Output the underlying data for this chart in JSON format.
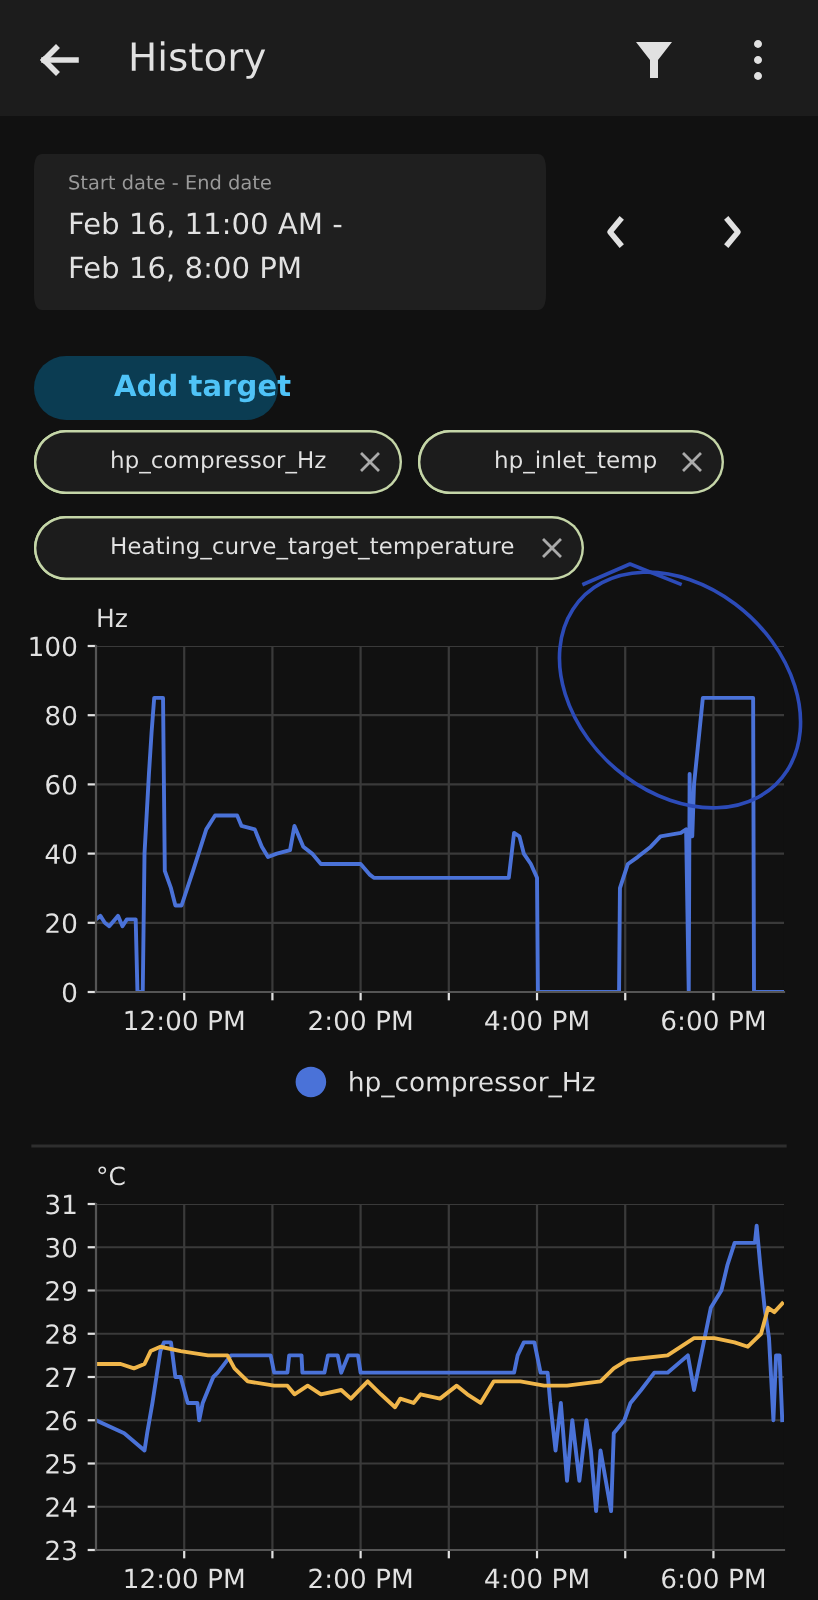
{
  "chart_data": [
    {
      "type": "other",
      "title": "History",
      "annotations": [
        "Start date - End date",
        "Feb 16, 11:00 AM -",
        "Feb 16, 8:00 PM",
        "Add target",
        "hp_compressor_Hz",
        "hp_inlet_temp",
        "Heating_curve_target_temperature"
      ]
    },
    {
      "type": "line",
      "ylabel": "Hz",
      "xlim": [
        11,
        18.8
      ],
      "ylim": [
        0,
        100
      ],
      "yticks": [
        0,
        20,
        40,
        60,
        80,
        100
      ],
      "xticks": [
        {
          "value": 12,
          "label": "12:00 PM"
        },
        {
          "value": 13,
          "label": null
        },
        {
          "value": 14,
          "label": "2:00 PM"
        },
        {
          "value": 15,
          "label": null
        },
        {
          "value": 16,
          "label": "4:00 PM"
        },
        {
          "value": 17,
          "label": null
        },
        {
          "value": 18,
          "label": "6:00 PM"
        }
      ],
      "grid": true,
      "legend": "bottom",
      "marker": "none",
      "line_style": "solid",
      "series": [
        {
          "name": "hp_compressor_Hz",
          "color": "#4a72d8",
          "x": [
            11.0,
            11.05,
            11.1,
            11.15,
            11.25,
            11.3,
            11.35,
            11.45,
            11.47,
            11.53,
            11.55,
            11.6,
            11.63,
            11.66,
            11.76,
            11.78,
            11.85,
            11.9,
            11.97,
            12.1,
            12.25,
            12.35,
            12.6,
            12.65,
            12.8,
            12.88,
            12.95,
            13.05,
            13.2,
            13.25,
            13.35,
            13.45,
            13.55,
            14.0,
            14.1,
            14.15,
            15.68,
            15.74,
            15.8,
            15.85,
            15.93,
            16.0,
            16.01,
            16.93,
            16.94,
            17.03,
            17.14,
            17.29,
            17.4,
            17.63,
            17.69,
            17.72,
            17.73,
            17.74,
            17.76,
            17.78,
            17.84,
            17.88,
            18.45,
            18.46,
            18.8
          ],
          "values": [
            21,
            22,
            20,
            19,
            22,
            19,
            21,
            21,
            0,
            0,
            40,
            63,
            75,
            85,
            85,
            35,
            30,
            25,
            25,
            35,
            47,
            51,
            51,
            48,
            47,
            42,
            39,
            40,
            41,
            48,
            42,
            40,
            37,
            37,
            34,
            33,
            33,
            46,
            45,
            40,
            37,
            33,
            0,
            0,
            30,
            37,
            39,
            42,
            45,
            46,
            47,
            0,
            63,
            45,
            45,
            60,
            75,
            85,
            85,
            0,
            0
          ]
        }
      ]
    },
    {
      "type": "line",
      "ylabel": "°C",
      "xlim": [
        11,
        18.8
      ],
      "ylim": [
        23,
        31
      ],
      "yticks": [
        23,
        24,
        25,
        26,
        27,
        28,
        29,
        30,
        31
      ],
      "xticks": [
        {
          "value": 12,
          "label": "12:00 PM"
        },
        {
          "value": 13,
          "label": null
        },
        {
          "value": 14,
          "label": "2:00 PM"
        },
        {
          "value": 15,
          "label": null
        },
        {
          "value": 16,
          "label": "4:00 PM"
        },
        {
          "value": 17,
          "label": null
        },
        {
          "value": 18,
          "label": "6:00 PM"
        }
      ],
      "grid": true,
      "marker": "none",
      "line_style": "solid",
      "series": [
        {
          "color": "#4a72d8",
          "x": [
            11.0,
            11.32,
            11.55,
            11.58,
            11.64,
            11.73,
            11.77,
            11.85,
            11.9,
            11.96,
            12.04,
            12.15,
            12.17,
            12.21,
            12.27,
            12.33,
            12.38,
            12.53,
            12.98,
            13.02,
            13.17,
            13.19,
            13.33,
            13.34,
            13.59,
            13.63,
            13.74,
            13.78,
            13.86,
            13.97,
            14.0,
            15.74,
            15.78,
            15.85,
            15.97,
            16.04,
            16.12,
            16.15,
            16.21,
            16.27,
            16.34,
            16.4,
            16.48,
            16.56,
            16.61,
            16.67,
            16.72,
            16.84,
            16.87,
            16.99,
            17.06,
            17.18,
            17.33,
            17.48,
            17.71,
            17.78,
            17.82,
            17.9,
            17.97,
            18.09,
            18.16,
            18.24,
            18.47,
            18.49,
            18.53,
            18.58,
            18.63,
            18.68,
            18.71,
            18.75,
            18.78
          ],
          "values": [
            26.0,
            25.7,
            25.3,
            25.7,
            26.4,
            27.6,
            27.8,
            27.8,
            27.0,
            27.0,
            26.4,
            26.4,
            26.0,
            26.4,
            26.7,
            27.0,
            27.1,
            27.5,
            27.5,
            27.1,
            27.1,
            27.5,
            27.5,
            27.1,
            27.1,
            27.5,
            27.5,
            27.1,
            27.5,
            27.5,
            27.1,
            27.1,
            27.5,
            27.8,
            27.8,
            27.1,
            27.1,
            26.4,
            25.3,
            26.4,
            24.6,
            26.0,
            24.6,
            26.0,
            25.3,
            23.9,
            25.3,
            23.9,
            25.7,
            26.0,
            26.4,
            26.7,
            27.1,
            27.1,
            27.5,
            26.7,
            27.1,
            27.9,
            28.6,
            29.0,
            29.6,
            30.1,
            30.1,
            30.5,
            29.6,
            28.6,
            27.9,
            26.0,
            27.5,
            27.5,
            26.0
          ]
        },
        {
          "color": "#f0b64a",
          "x": [
            11.0,
            11.28,
            11.43,
            11.55,
            11.62,
            11.73,
            11.96,
            12.27,
            12.49,
            12.57,
            12.72,
            13.02,
            13.17,
            13.25,
            13.4,
            13.55,
            13.78,
            13.89,
            14.08,
            14.23,
            14.39,
            14.45,
            14.6,
            14.68,
            14.9,
            15.09,
            15.21,
            15.36,
            15.51,
            15.81,
            16.08,
            16.34,
            16.72,
            16.87,
            17.03,
            17.48,
            17.78,
            18.01,
            18.24,
            18.39,
            18.54,
            18.62,
            18.69,
            18.78
          ],
          "values": [
            27.3,
            27.3,
            27.2,
            27.3,
            27.6,
            27.7,
            27.6,
            27.5,
            27.5,
            27.2,
            26.9,
            26.8,
            26.8,
            26.6,
            26.8,
            26.6,
            26.7,
            26.5,
            26.9,
            26.6,
            26.3,
            26.5,
            26.4,
            26.6,
            26.5,
            26.8,
            26.6,
            26.4,
            26.9,
            26.9,
            26.8,
            26.8,
            26.9,
            27.2,
            27.4,
            27.5,
            27.9,
            27.9,
            27.8,
            27.7,
            28.0,
            28.6,
            28.5,
            28.7
          ]
        }
      ]
    }
  ]
}
